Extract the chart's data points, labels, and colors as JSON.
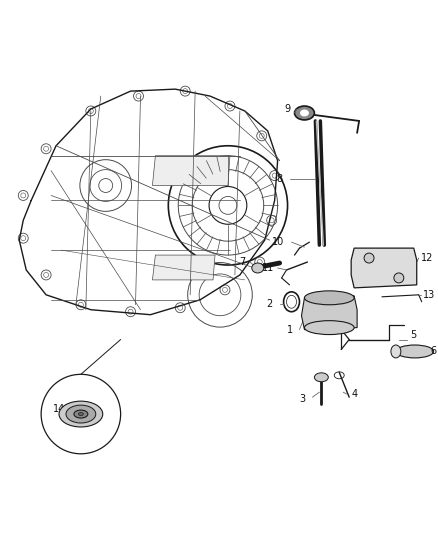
{
  "bg_color": "#ffffff",
  "lc": "#4a4a4a",
  "dc": "#1a1a1a",
  "fig_width": 4.38,
  "fig_height": 5.33,
  "dpi": 100,
  "label_fs": 7,
  "label_color": "#111111",
  "leader_color": "#666666"
}
